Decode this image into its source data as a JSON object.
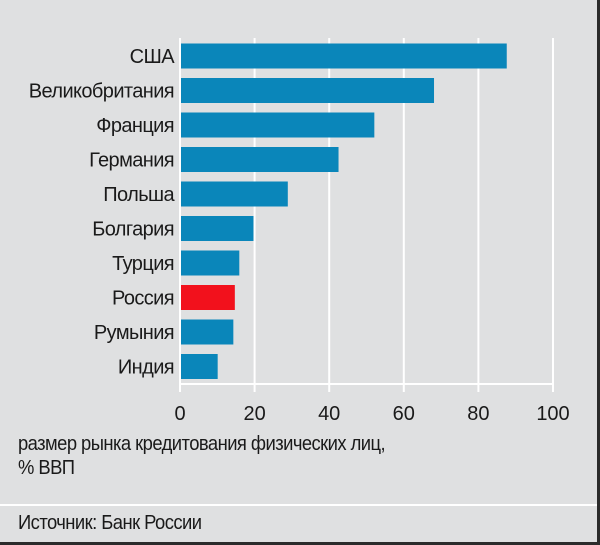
{
  "chart_data": {
    "type": "bar",
    "orientation": "horizontal",
    "categories": [
      "США",
      "Великобритания",
      "Франция",
      "Германия",
      "Польша",
      "Болгария",
      "Турция",
      "Россия",
      "Румыния",
      "Индия"
    ],
    "values": [
      87.6,
      68.1,
      52.1,
      42.5,
      28.9,
      19.7,
      15.9,
      14.7,
      14.3,
      10.1
    ],
    "xlabel": "размер рынка кредитования физических лиц, % ВВП",
    "xlim": [
      0,
      100
    ],
    "xticks": [
      0,
      20,
      40,
      60,
      80,
      100
    ],
    "grid": true,
    "colors": {
      "default": "#0a86ba",
      "highlight": "#f2111c",
      "highlight_category": "Россия",
      "background": "#dfe0e1",
      "grid": "#ffffff"
    }
  },
  "caption": {
    "line1": "размер рынка кредитования физических лиц,",
    "line2": "% ВВП"
  },
  "source": "Источник: Банк России"
}
